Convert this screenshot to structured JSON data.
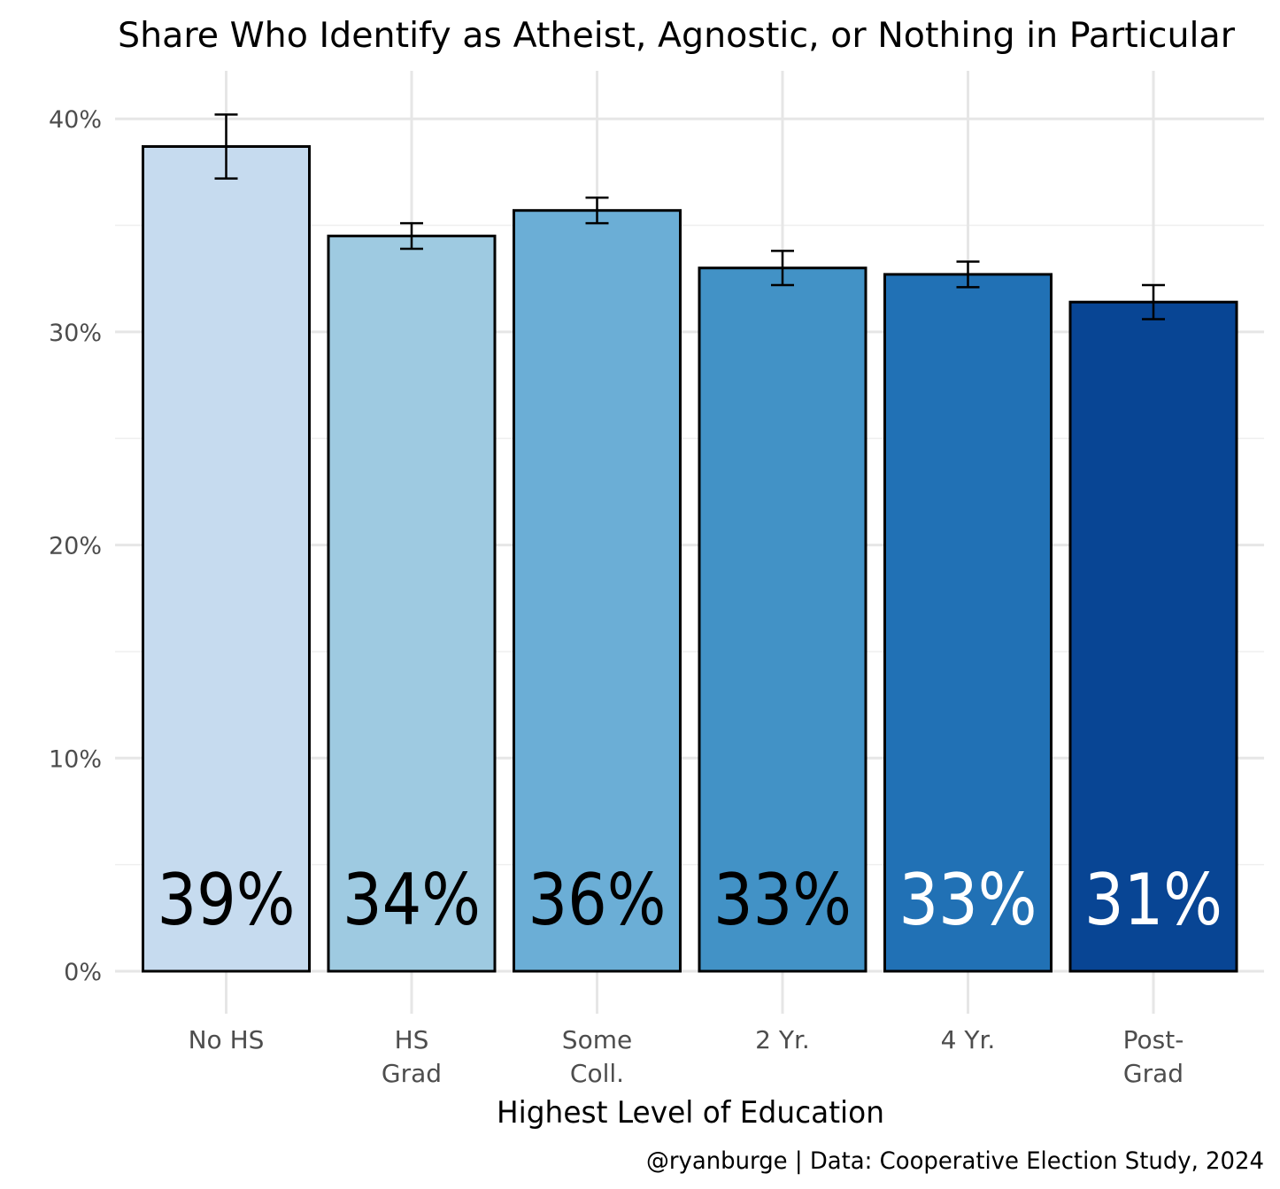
{
  "chart_data": {
    "type": "bar",
    "title": "Share Who Identify as Atheist, Agnostic, or Nothing in Particular",
    "xlabel": "Highest Level of Education",
    "ylabel": "",
    "caption": "@ryanburge | Data: Cooperative Election Study, 2024",
    "ylim": [
      0,
      42
    ],
    "yticks": [
      0,
      10,
      20,
      30,
      40
    ],
    "ytick_labels": [
      "0%",
      "10%",
      "20%",
      "30%",
      "40%"
    ],
    "grid": true,
    "categories": [
      [
        "No HS"
      ],
      [
        "HS",
        "Grad"
      ],
      [
        "Some",
        "Coll."
      ],
      [
        "2 Yr."
      ],
      [
        "4 Yr."
      ],
      [
        "Post-",
        "Grad"
      ]
    ],
    "values": [
      38.7,
      34.5,
      35.7,
      33.0,
      32.7,
      31.4
    ],
    "error_low": [
      37.2,
      33.9,
      35.1,
      32.2,
      32.1,
      30.6
    ],
    "error_high": [
      40.2,
      35.1,
      36.3,
      33.8,
      33.3,
      32.2
    ],
    "data_labels": [
      "39%",
      "34%",
      "36%",
      "33%",
      "33%",
      "31%"
    ],
    "colors": [
      "#c6dbef",
      "#9ecae1",
      "#6baed6",
      "#4292c6",
      "#2171b5",
      "#084594"
    ],
    "label_colors": [
      "#000000",
      "#000000",
      "#000000",
      "#000000",
      "#ffffff",
      "#ffffff"
    ]
  }
}
